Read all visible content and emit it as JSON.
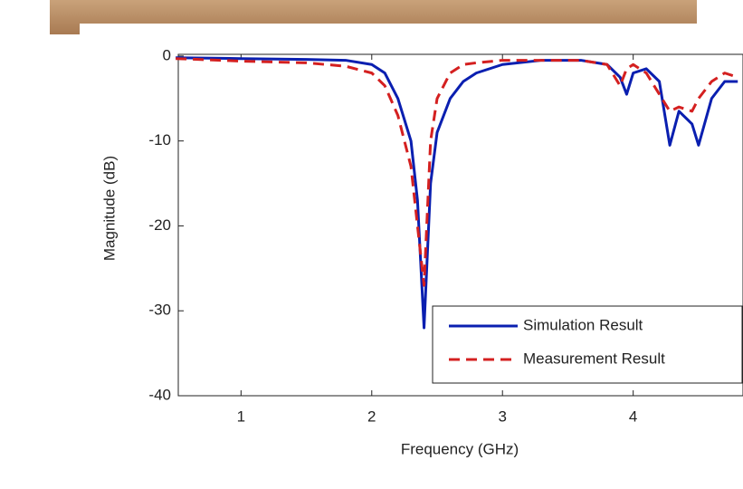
{
  "chart_data": {
    "type": "line",
    "x_label": "Frequency (GHz)",
    "y_label": "Magnitude (dB)",
    "x": [
      0.5,
      1,
      1.5,
      1.8,
      2.0,
      2.1,
      2.2,
      2.3,
      2.35,
      2.4,
      2.45,
      2.5,
      2.6,
      2.7,
      2.8,
      3.0,
      3.3,
      3.6,
      3.8,
      3.9,
      3.95,
      4.0,
      4.1,
      4.2,
      4.28,
      4.35,
      4.45,
      4.5,
      4.6,
      4.7,
      4.8
    ],
    "series": [
      {
        "name": "Simulation Result",
        "color": "#0a1fb0",
        "dash": false,
        "values": [
          -0.2,
          -0.3,
          -0.4,
          -0.5,
          -1,
          -2,
          -5,
          -10,
          -17,
          -32,
          -15,
          -9,
          -5,
          -3,
          -2,
          -1,
          -0.5,
          -0.5,
          -1,
          -2.5,
          -4.5,
          -2,
          -1.5,
          -3,
          -10.5,
          -6.5,
          -8,
          -10.5,
          -5,
          -3,
          -3
        ]
      },
      {
        "name": "Measurement Result",
        "color": "#d42020",
        "dash": true,
        "values": [
          -0.3,
          -0.6,
          -0.8,
          -1.2,
          -2,
          -3.5,
          -7,
          -13,
          -20,
          -27,
          -10,
          -5,
          -2,
          -1,
          -0.8,
          -0.5,
          -0.5,
          -0.5,
          -1,
          -3.5,
          -1.5,
          -1,
          -2,
          -4.5,
          -6.5,
          -6,
          -6.5,
          -5,
          -3,
          -2,
          -2.5
        ]
      }
    ],
    "xlim": [
      0.52,
      4.84
    ],
    "ylim": [
      -40,
      0.2
    ],
    "xticks": [
      1,
      2,
      3,
      4
    ],
    "yticks": [
      0,
      -10,
      -20,
      -30,
      -40
    ],
    "grid": false,
    "legend": "lower-right"
  }
}
